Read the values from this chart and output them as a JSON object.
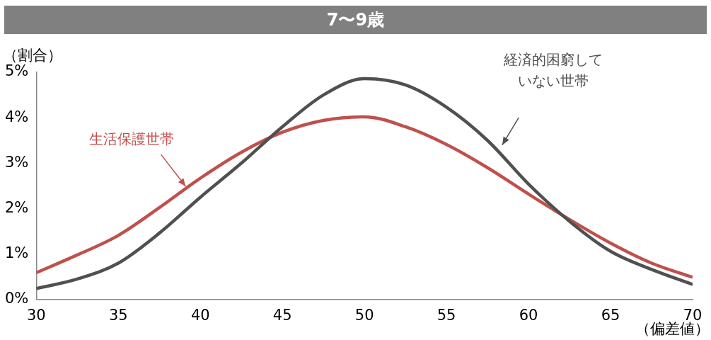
{
  "chart_data": {
    "type": "line",
    "title": "7〜9歳",
    "ylabel": "（割合）",
    "xlabel": "（偏差値）",
    "x": [
      30,
      32.5,
      35,
      37.5,
      40,
      42.5,
      45,
      47.5,
      50,
      52.5,
      55,
      57.5,
      60,
      62.5,
      65,
      67.5,
      70
    ],
    "xlim": [
      30,
      70
    ],
    "xticks": [
      30,
      35,
      40,
      45,
      50,
      55,
      60,
      65,
      70
    ],
    "ylim": [
      0,
      5
    ],
    "yticks": [
      {
        "value": 0,
        "label": "0%"
      },
      {
        "value": 1,
        "label": "1%"
      },
      {
        "value": 2,
        "label": "2%"
      },
      {
        "value": 3,
        "label": "3%"
      },
      {
        "value": 4,
        "label": "4%"
      },
      {
        "value": 5,
        "label": "5%"
      }
    ],
    "grid": false,
    "legend": false,
    "marker": "none",
    "line_style": "solid",
    "series": [
      {
        "name": "経済的困窮していない世帯",
        "color": "#505050",
        "values": [
          0.24,
          0.45,
          0.8,
          1.46,
          2.25,
          3.0,
          3.8,
          4.5,
          4.86,
          4.72,
          4.23,
          3.5,
          2.54,
          1.72,
          1.06,
          0.66,
          0.33
        ]
      },
      {
        "name": "生活保護世帯",
        "color": "#c0504d",
        "values": [
          0.59,
          0.98,
          1.41,
          2.02,
          2.67,
          3.24,
          3.68,
          3.94,
          4.02,
          3.8,
          3.41,
          2.9,
          2.32,
          1.76,
          1.24,
          0.8,
          0.49
        ]
      }
    ]
  }
}
